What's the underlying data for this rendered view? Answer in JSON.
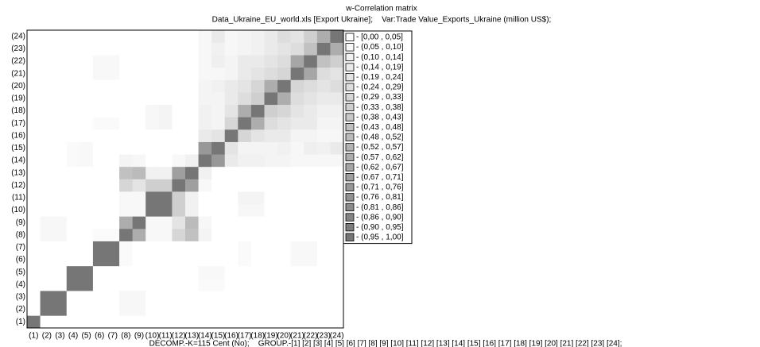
{
  "chart_data": {
    "type": "heatmap",
    "title": "w-Correlation matrix",
    "subtitle": "Data_Ukraine_EU_world.xls [Export Ukraine];    Var:Trade Value_Exports_Ukraine (million US$);",
    "footer": "DECOMP.-K=115 Cent (No);    GROUP.-[1] [2] [3] [4] [5] [6] [7] [8] [9] [10] [11] [12] [13] [14] [15] [16] [17] [18] [19] [20] [21] [22] [23] [24];",
    "categories": [
      "(1)",
      "(2)",
      "(3)",
      "(4)",
      "(5)",
      "(6)",
      "(7)",
      "(8)",
      "(9)",
      "(10)",
      "(11)",
      "(12)",
      "(13)",
      "(14)",
      "(15)",
      "(16)",
      "(17)",
      "(18)",
      "(19)",
      "(20)",
      "(21)",
      "(22)",
      "(23)",
      "(24)"
    ],
    "color_low": "#ffffff",
    "color_high": "#767676",
    "legend": [
      "- [0,00 , 0,05]",
      "- (0,05 , 0,10]",
      "- (0,10 , 0,14]",
      "- (0,14 , 0,19]",
      "- (0,19 , 0,24]",
      "- (0,24 , 0,29]",
      "- (0,29 , 0,33]",
      "- (0,33 , 0,38]",
      "- (0,38 , 0,43]",
      "- (0,43 , 0,48]",
      "- (0,48 , 0,52]",
      "- (0,52 , 0,57]",
      "- (0,57 , 0,62]",
      "- (0,62 , 0,67]",
      "- (0,67 , 0,71]",
      "- (0,71 , 0,76]",
      "- (0,76 , 0,81]",
      "- (0,81 , 0,86]",
      "- (0,86 , 0,90]",
      "- (0,90 , 0,95]",
      "- (0,95 , 1,00]"
    ],
    "values": [
      [
        1,
        0,
        0,
        0,
        0,
        0,
        0,
        0,
        0,
        0,
        0,
        0,
        0,
        0,
        0,
        0,
        0,
        0,
        0,
        0,
        0,
        0,
        0,
        0
      ],
      [
        0,
        1,
        1,
        0,
        0,
        0,
        0,
        0.06,
        0.06,
        0,
        0,
        0,
        0,
        0,
        0,
        0,
        0,
        0,
        0,
        0,
        0,
        0,
        0,
        0
      ],
      [
        0,
        1,
        1,
        0,
        0,
        0,
        0,
        0.06,
        0.06,
        0,
        0,
        0,
        0,
        0,
        0,
        0,
        0,
        0,
        0,
        0,
        0,
        0,
        0,
        0
      ],
      [
        0,
        0,
        0,
        1,
        1,
        0,
        0,
        0,
        0,
        0,
        0,
        0,
        0,
        0.04,
        0.04,
        0,
        0,
        0,
        0,
        0,
        0,
        0,
        0,
        0
      ],
      [
        0,
        0,
        0,
        1,
        1,
        0,
        0,
        0,
        0,
        0,
        0,
        0,
        0,
        0.05,
        0.05,
        0,
        0,
        0,
        0,
        0,
        0,
        0,
        0,
        0
      ],
      [
        0,
        0,
        0,
        0,
        0,
        1,
        1,
        0.04,
        0,
        0,
        0,
        0,
        0,
        0,
        0,
        0,
        0.04,
        0,
        0,
        0,
        0.05,
        0.05,
        0,
        0
      ],
      [
        0,
        0,
        0,
        0,
        0,
        1,
        1,
        0.04,
        0,
        0,
        0,
        0,
        0,
        0,
        0,
        0,
        0.04,
        0,
        0,
        0,
        0.05,
        0.05,
        0,
        0
      ],
      [
        0,
        0.06,
        0.06,
        0,
        0,
        0.04,
        0.04,
        1,
        0.6,
        0.05,
        0.05,
        0.3,
        0.45,
        0.08,
        0,
        0,
        0,
        0,
        0,
        0,
        0,
        0,
        0,
        0
      ],
      [
        0,
        0.06,
        0.06,
        0,
        0,
        0,
        0,
        0.6,
        1,
        0.05,
        0.05,
        0.2,
        0.5,
        0.06,
        0,
        0,
        0,
        0,
        0,
        0,
        0,
        0,
        0,
        0
      ],
      [
        0,
        0,
        0,
        0,
        0,
        0,
        0,
        0.05,
        0.05,
        1,
        1,
        0.35,
        0.1,
        0,
        0,
        0,
        0.06,
        0.06,
        0,
        0,
        0,
        0,
        0,
        0
      ],
      [
        0,
        0,
        0,
        0,
        0,
        0,
        0,
        0.05,
        0.05,
        1,
        1,
        0.35,
        0.1,
        0,
        0,
        0,
        0.08,
        0.08,
        0,
        0,
        0,
        0,
        0,
        0
      ],
      [
        0,
        0,
        0,
        0,
        0,
        0,
        0,
        0.3,
        0.2,
        0.35,
        0.35,
        1,
        0.7,
        0.05,
        0,
        0,
        0,
        0,
        0,
        0,
        0,
        0,
        0,
        0
      ],
      [
        0,
        0,
        0,
        0,
        0,
        0,
        0,
        0.45,
        0.5,
        0.1,
        0.1,
        0.7,
        1,
        0.1,
        0,
        0,
        0,
        0,
        0,
        0,
        0,
        0,
        0,
        0
      ],
      [
        0,
        0,
        0,
        0.04,
        0.05,
        0,
        0,
        0.08,
        0.06,
        0,
        0,
        0.05,
        0.1,
        1,
        0.75,
        0.15,
        0.1,
        0.1,
        0.08,
        0.08,
        0.06,
        0.06,
        0.06,
        0.06
      ],
      [
        0,
        0,
        0,
        0.04,
        0.05,
        0,
        0,
        0,
        0,
        0,
        0,
        0,
        0,
        0.75,
        1,
        0.2,
        0.08,
        0.08,
        0.08,
        0.1,
        0.06,
        0.12,
        0.1,
        0.15
      ],
      [
        0,
        0,
        0,
        0,
        0,
        0,
        0,
        0,
        0,
        0,
        0,
        0,
        0,
        0.15,
        0.2,
        1,
        0.3,
        0.2,
        0.15,
        0.15,
        0.08,
        0.08,
        0.06,
        0.06
      ],
      [
        0,
        0,
        0,
        0,
        0,
        0.04,
        0.04,
        0,
        0,
        0.06,
        0.08,
        0,
        0,
        0.1,
        0.08,
        0.3,
        1,
        0.6,
        0.25,
        0.2,
        0.15,
        0.15,
        0.08,
        0.08
      ],
      [
        0,
        0,
        0,
        0,
        0,
        0,
        0,
        0,
        0,
        0.06,
        0.08,
        0,
        0,
        0.1,
        0.08,
        0.2,
        0.6,
        1,
        0.35,
        0.3,
        0.2,
        0.15,
        0.1,
        0.1
      ],
      [
        0,
        0,
        0,
        0,
        0,
        0,
        0,
        0,
        0,
        0,
        0,
        0,
        0,
        0.08,
        0.08,
        0.15,
        0.25,
        0.35,
        1,
        0.6,
        0.25,
        0.2,
        0.15,
        0.15
      ],
      [
        0,
        0,
        0,
        0,
        0,
        0,
        0,
        0,
        0,
        0,
        0,
        0,
        0,
        0.08,
        0.1,
        0.15,
        0.2,
        0.3,
        0.6,
        1,
        0.3,
        0.25,
        0.2,
        0.25
      ],
      [
        0,
        0,
        0,
        0,
        0,
        0.05,
        0.05,
        0,
        0,
        0,
        0,
        0,
        0,
        0.06,
        0.06,
        0.08,
        0.15,
        0.2,
        0.25,
        0.3,
        1,
        0.65,
        0.25,
        0.2
      ],
      [
        0,
        0,
        0,
        0,
        0,
        0.05,
        0.05,
        0,
        0,
        0,
        0,
        0,
        0,
        0.06,
        0.12,
        0.08,
        0.15,
        0.15,
        0.2,
        0.25,
        0.65,
        1,
        0.45,
        0.35
      ],
      [
        0,
        0,
        0,
        0,
        0,
        0,
        0,
        0,
        0,
        0,
        0,
        0,
        0,
        0.06,
        0.1,
        0.06,
        0.08,
        0.1,
        0.15,
        0.2,
        0.25,
        0.45,
        1,
        0.6
      ],
      [
        0,
        0,
        0,
        0,
        0,
        0,
        0,
        0,
        0,
        0,
        0,
        0,
        0,
        0.06,
        0.15,
        0.06,
        0.08,
        0.1,
        0.15,
        0.25,
        0.2,
        0.35,
        0.6,
        1
      ]
    ]
  }
}
